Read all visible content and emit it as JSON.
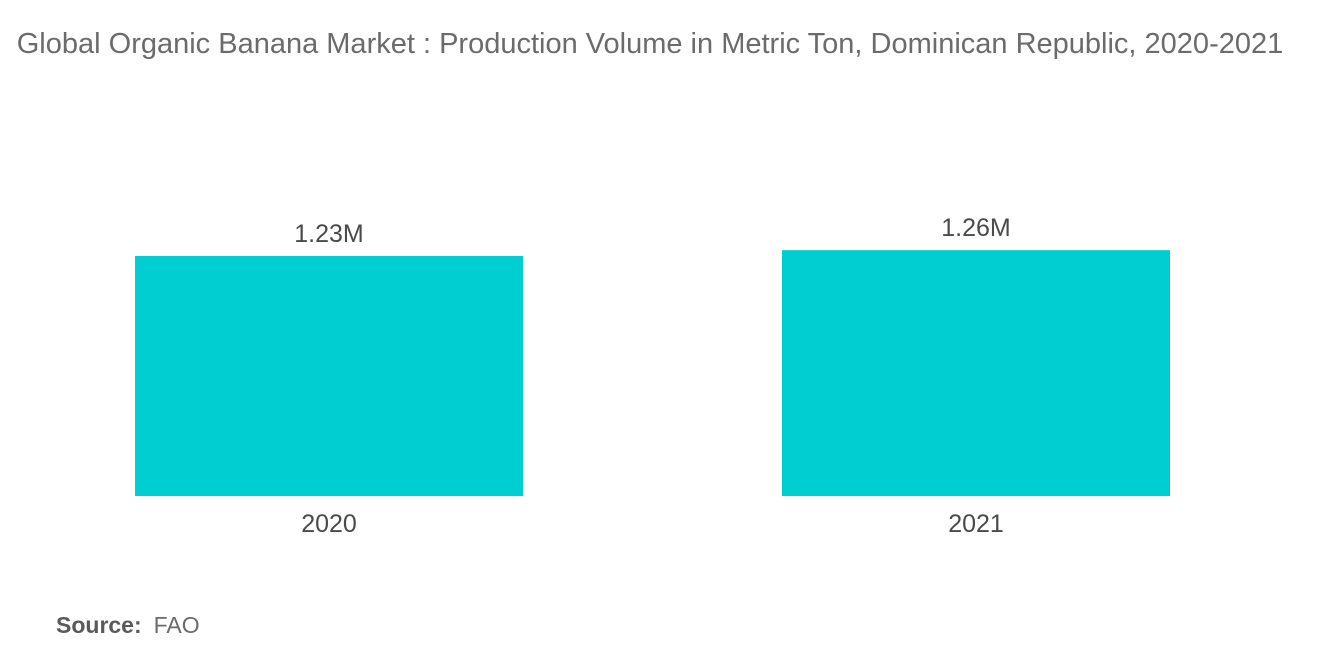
{
  "chart_data": {
    "type": "bar",
    "title": "Global Organic Banana Market : Production Volume in Metric Ton, Dominican Republic, 2020-2021",
    "categories": [
      "2020",
      "2021"
    ],
    "values": [
      1230000,
      1260000
    ],
    "data_labels": [
      "1.23M",
      "1.26M"
    ],
    "xlabel": "",
    "ylabel": "",
    "ylim": [
      0,
      1300000
    ],
    "grid": false,
    "legend": "none",
    "bar_color": "#00ced1"
  },
  "source": {
    "label": "Source:",
    "value": "FAO"
  }
}
